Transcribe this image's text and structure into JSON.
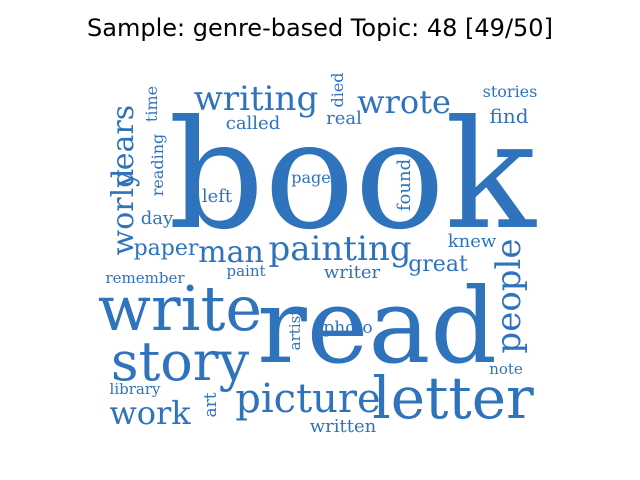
{
  "title": "Sample: genre-based Topic: 48 [49/50]",
  "word_color": "#2f73bd",
  "words": [
    {
      "text": "book"
    },
    {
      "text": "read"
    },
    {
      "text": "write"
    },
    {
      "text": "story"
    },
    {
      "text": "letter"
    },
    {
      "text": "picture"
    },
    {
      "text": "painting"
    },
    {
      "text": "writing"
    },
    {
      "text": "wrote"
    },
    {
      "text": "man"
    },
    {
      "text": "people"
    },
    {
      "text": "work"
    },
    {
      "text": "world"
    },
    {
      "text": "years"
    },
    {
      "text": "paper"
    },
    {
      "text": "great"
    },
    {
      "text": "writer"
    },
    {
      "text": "written"
    },
    {
      "text": "knew"
    },
    {
      "text": "found"
    },
    {
      "text": "called"
    },
    {
      "text": "real"
    },
    {
      "text": "died"
    },
    {
      "text": "stories"
    },
    {
      "text": "find"
    },
    {
      "text": "time"
    },
    {
      "text": "reading"
    },
    {
      "text": "left"
    },
    {
      "text": "page"
    },
    {
      "text": "day"
    },
    {
      "text": "remember"
    },
    {
      "text": "paint"
    },
    {
      "text": "photo"
    },
    {
      "text": "artist"
    },
    {
      "text": "library"
    },
    {
      "text": "art"
    },
    {
      "text": "note"
    }
  ]
}
